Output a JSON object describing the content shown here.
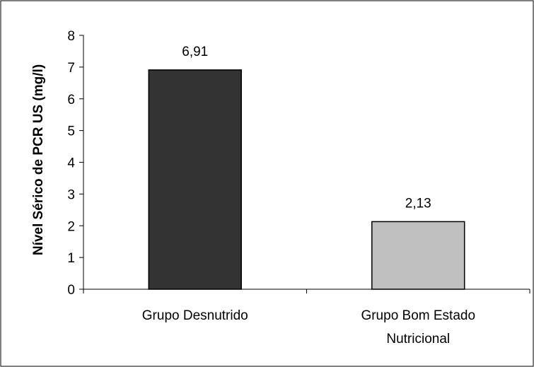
{
  "chart_data": {
    "type": "bar",
    "title": "",
    "xlabel": "",
    "ylabel": "Nível Sérico de PCR US (mg/l)",
    "ylim": [
      0,
      8
    ],
    "yticks": [
      0,
      1,
      2,
      3,
      4,
      5,
      6,
      7,
      8
    ],
    "grid": false,
    "categories": [
      [
        "Grupo Desnutrido"
      ],
      [
        "Grupo Bom Estado",
        "Nutricional"
      ]
    ],
    "values": [
      6.91,
      2.13
    ],
    "value_labels": [
      "6,91",
      "2,13"
    ],
    "bar_colors": [
      "#333333",
      "#c0c0c0"
    ]
  }
}
